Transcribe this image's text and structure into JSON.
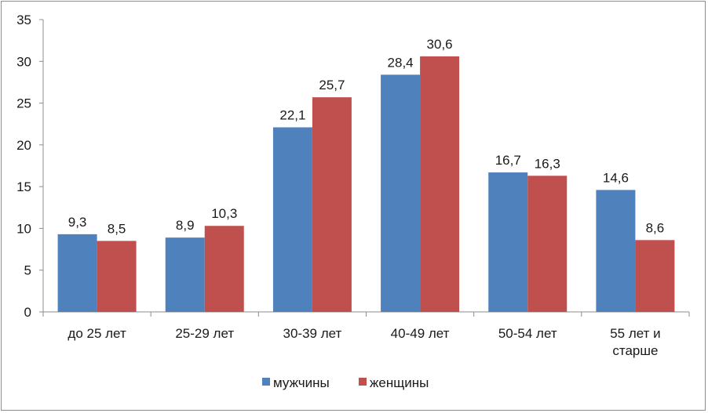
{
  "chart_data": {
    "type": "bar",
    "categories": [
      [
        "до 25 лет"
      ],
      [
        "25-29 лет"
      ],
      [
        "30-39 лет"
      ],
      [
        "40-49 лет"
      ],
      [
        "50-54 лет"
      ],
      [
        "55 лет и",
        "старше"
      ]
    ],
    "series": [
      {
        "name": "мужчины",
        "color": "#4f81bd",
        "values": [
          9.3,
          8.9,
          22.1,
          28.4,
          16.7,
          14.6
        ],
        "labels": [
          "9,3",
          "8,9",
          "22,1",
          "28,4",
          "16,7",
          "14,6"
        ]
      },
      {
        "name": "женщины",
        "color": "#c0504d",
        "values": [
          8.5,
          10.3,
          25.7,
          30.6,
          16.3,
          8.6
        ],
        "labels": [
          "8,5",
          "10,3",
          "25,7",
          "30,6",
          "16,3",
          "8,6"
        ]
      }
    ],
    "ylim": [
      0,
      35
    ],
    "yticks": [
      0,
      5,
      10,
      15,
      20,
      25,
      30,
      35
    ],
    "grid": false,
    "legend_position": "bottom"
  }
}
